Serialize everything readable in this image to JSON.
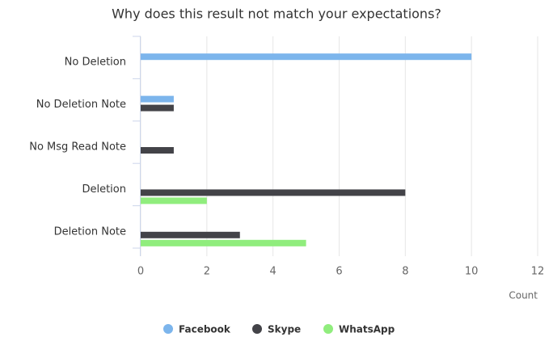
{
  "chart_data": {
    "type": "hbar",
    "title": "Why does this result not match your expectations?",
    "categories": [
      "No Deletion",
      "No Deletion Note",
      "No Msg Read Note",
      "Deletion",
      "Deletion Note"
    ],
    "series": [
      {
        "name": "Facebook",
        "color": "#7cb5ec",
        "values": [
          10,
          1,
          0,
          0,
          0
        ]
      },
      {
        "name": "Skype",
        "color": "#434348",
        "values": [
          0,
          1,
          1,
          8,
          3
        ]
      },
      {
        "name": "WhatsApp",
        "color": "#90ed7d",
        "values": [
          0,
          0,
          0,
          2,
          5
        ]
      }
    ],
    "x_label": "Count",
    "xlim": [
      0,
      12
    ],
    "xticks": [
      0,
      2,
      4,
      6,
      8,
      10,
      12
    ],
    "grid": true,
    "legend": "bottom"
  }
}
